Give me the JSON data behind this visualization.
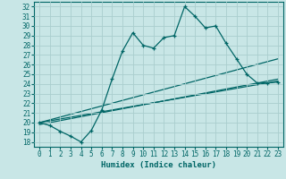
{
  "xlabel": "Humidex (Indice chaleur)",
  "ylabel": "",
  "background_color": "#c8e6e6",
  "grid_color": "#aacece",
  "line_color": "#006666",
  "xlim": [
    -0.5,
    23.5
  ],
  "ylim": [
    17.5,
    32.5
  ],
  "xticks": [
    0,
    1,
    2,
    3,
    4,
    5,
    6,
    7,
    8,
    9,
    10,
    11,
    12,
    13,
    14,
    15,
    16,
    17,
    18,
    19,
    20,
    21,
    22,
    23
  ],
  "yticks": [
    18,
    19,
    20,
    21,
    22,
    23,
    24,
    25,
    26,
    27,
    28,
    29,
    30,
    31,
    32
  ],
  "series1": {
    "x": [
      0,
      1,
      2,
      3,
      4,
      5,
      6,
      7,
      8,
      9,
      10,
      11,
      12,
      13,
      14,
      15,
      16,
      17,
      18,
      19,
      20,
      21,
      22,
      23
    ],
    "y": [
      20.0,
      19.7,
      19.1,
      18.6,
      18.0,
      19.2,
      21.3,
      24.5,
      27.4,
      29.3,
      28.0,
      27.7,
      28.8,
      29.0,
      32.0,
      31.0,
      29.8,
      30.0,
      28.2,
      26.6,
      25.0,
      24.1,
      24.1,
      24.2
    ]
  },
  "series2": {
    "x": [
      0,
      23
    ],
    "y": [
      20.0,
      24.3
    ]
  },
  "series3": {
    "x": [
      0,
      23
    ],
    "y": [
      19.8,
      24.5
    ]
  },
  "series4": {
    "x": [
      0,
      23
    ],
    "y": [
      20.0,
      26.6
    ]
  }
}
